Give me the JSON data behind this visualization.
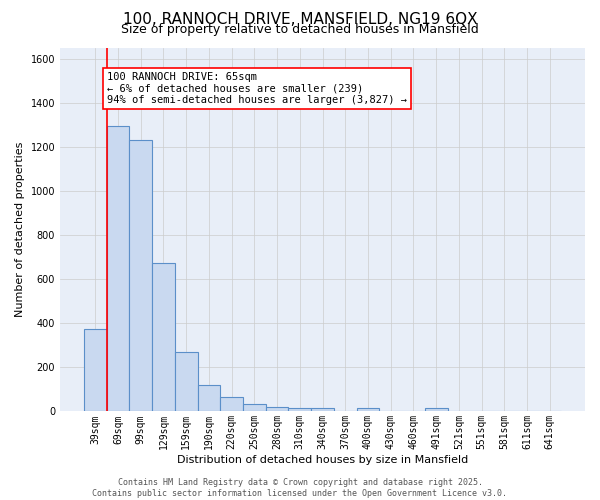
{
  "title": "100, RANNOCH DRIVE, MANSFIELD, NG19 6QX",
  "subtitle": "Size of property relative to detached houses in Mansfield",
  "xlabel": "Distribution of detached houses by size in Mansfield",
  "ylabel": "Number of detached properties",
  "categories": [
    "39sqm",
    "69sqm",
    "99sqm",
    "129sqm",
    "159sqm",
    "190sqm",
    "220sqm",
    "250sqm",
    "280sqm",
    "310sqm",
    "340sqm",
    "370sqm",
    "400sqm",
    "430sqm",
    "460sqm",
    "491sqm",
    "521sqm",
    "551sqm",
    "581sqm",
    "611sqm",
    "641sqm"
  ],
  "values": [
    375,
    1295,
    1230,
    675,
    270,
    120,
    65,
    35,
    22,
    15,
    15,
    0,
    15,
    0,
    0,
    15,
    0,
    0,
    0,
    0,
    0
  ],
  "bar_color": "#c9d9f0",
  "bar_edge_color": "#5b8fc9",
  "bar_edge_width": 0.8,
  "grid_color": "#cccccc",
  "background_color": "#e8eef8",
  "annotation_text": "100 RANNOCH DRIVE: 65sqm\n← 6% of detached houses are smaller (239)\n94% of semi-detached houses are larger (3,827) →",
  "annotation_box_color": "white",
  "annotation_box_edge_color": "red",
  "vline_x": 0.5,
  "vline_color": "red",
  "ylim": [
    0,
    1650
  ],
  "yticks": [
    0,
    200,
    400,
    600,
    800,
    1000,
    1200,
    1400,
    1600
  ],
  "footer": "Contains HM Land Registry data © Crown copyright and database right 2025.\nContains public sector information licensed under the Open Government Licence v3.0.",
  "title_fontsize": 11,
  "subtitle_fontsize": 9,
  "xlabel_fontsize": 8,
  "ylabel_fontsize": 8,
  "tick_fontsize": 7,
  "annotation_fontsize": 7.5,
  "footer_fontsize": 6
}
